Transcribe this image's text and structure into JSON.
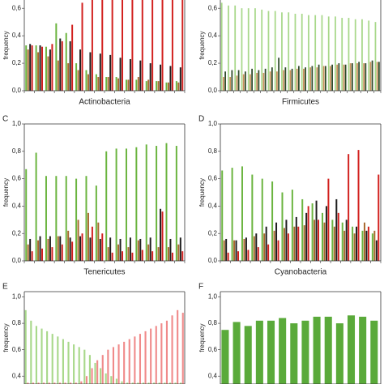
{
  "chart_data": [
    {
      "type": "bar",
      "x_label": "Actinobacteria",
      "y_label": "frequency",
      "ylim": [
        0,
        0.66
      ],
      "yticks": [
        {
          "value": 0,
          "label": "0,0"
        },
        {
          "value": 0.2,
          "label": "0,2"
        },
        {
          "value": 0.4,
          "label": "0,4"
        },
        {
          "value": 0.6,
          "label": "0,6"
        }
      ],
      "categories": [
        null,
        null,
        null,
        null,
        null,
        null,
        null,
        null,
        null,
        null,
        null,
        null,
        null,
        null,
        null,
        null
      ],
      "series": [
        {
          "color": "#6ab43e",
          "values": [
            0.33,
            0.33,
            0.32,
            0.49,
            0.42,
            0.2,
            0.15,
            0.12,
            0.1,
            0.1,
            0.08,
            0.08,
            0.07,
            0.07,
            0.06,
            0.07
          ]
        },
        {
          "color": "#a8692f",
          "values": [
            0.3,
            0.28,
            0.25,
            0.22,
            0.2,
            0.15,
            0.12,
            0.1,
            0.1,
            0.09,
            0.08,
            0.1,
            0.08,
            0.07,
            0.06,
            0.06
          ]
        },
        {
          "color": "#1e1e1e",
          "values": [
            0.34,
            0.33,
            0.3,
            0.38,
            0.36,
            0.3,
            0.28,
            0.27,
            0.26,
            0.24,
            0.23,
            0.22,
            0.2,
            0.19,
            0.18,
            0.17
          ]
        },
        {
          "color": "#d2201e",
          "values": [
            0.33,
            0.32,
            0.34,
            0.36,
            0.48,
            0.64,
            0.7,
            0.7,
            0.7,
            0.7,
            0.7,
            0.7,
            0.7,
            0.7,
            0.7,
            0.7
          ]
        }
      ]
    },
    {
      "type": "bar",
      "x_label": "Firmicutes",
      "y_label": "frequency",
      "ylim": [
        0,
        0.66
      ],
      "yticks": [
        {
          "value": 0,
          "label": "0,0"
        },
        {
          "value": 0.2,
          "label": "0,2"
        },
        {
          "value": 0.4,
          "label": "0,4"
        },
        {
          "value": 0.6,
          "label": "0,6"
        }
      ],
      "categories": [
        null,
        null,
        null,
        null,
        null,
        null,
        null,
        null,
        null,
        null,
        null,
        null,
        null,
        null,
        null,
        null,
        null,
        null,
        null,
        null,
        null,
        null,
        null,
        null
      ],
      "series": [
        {
          "color": "#a8d88a",
          "values": [
            0.64,
            0.62,
            0.62,
            0.6,
            0.6,
            0.6,
            0.59,
            0.58,
            0.58,
            0.57,
            0.57,
            0.56,
            0.56,
            0.55,
            0.55,
            0.55,
            0.54,
            0.54,
            0.53,
            0.53,
            0.52,
            0.52,
            0.51,
            0.5
          ]
        },
        {
          "color": "#c8905a",
          "values": [
            0.1,
            0.1,
            0.11,
            0.12,
            0.12,
            0.13,
            0.13,
            0.14,
            0.14,
            0.15,
            0.15,
            0.16,
            0.16,
            0.17,
            0.17,
            0.18,
            0.18,
            0.19,
            0.19,
            0.2,
            0.2,
            0.2,
            0.21,
            0.21
          ]
        },
        {
          "color": "#2e4a2a",
          "values": [
            0.14,
            0.15,
            0.15,
            0.14,
            0.16,
            0.15,
            0.16,
            0.17,
            0.24,
            0.17,
            0.16,
            0.18,
            0.17,
            0.18,
            0.19,
            0.18,
            0.19,
            0.2,
            0.19,
            0.2,
            0.21,
            0.2,
            0.22,
            0.21
          ]
        }
      ]
    },
    {
      "type": "bar",
      "panel": "C",
      "x_label": "Tenericutes",
      "y_label": "frequency",
      "ylim": [
        0,
        1
      ],
      "yticks": [
        {
          "value": 0,
          "label": "0,0"
        },
        {
          "value": 0.2,
          "label": "0,2"
        },
        {
          "value": 0.4,
          "label": "0,4"
        },
        {
          "value": 0.6,
          "label": "0,6"
        },
        {
          "value": 0.8,
          "label": "0,8"
        },
        {
          "value": 1,
          "label": "1,0"
        }
      ],
      "categories": [
        null,
        null,
        null,
        null,
        null,
        null,
        null,
        null,
        null,
        null,
        null,
        null,
        null,
        null,
        null,
        null
      ],
      "series": [
        {
          "color": "#6ab43e",
          "values": [
            0.67,
            0.79,
            0.62,
            0.62,
            0.62,
            0.6,
            0.62,
            0.55,
            0.8,
            0.82,
            0.82,
            0.83,
            0.85,
            0.84,
            0.86,
            0.84
          ]
        },
        {
          "color": "#a8692f",
          "values": [
            0.12,
            0.15,
            0.16,
            0.18,
            0.22,
            0.3,
            0.35,
            0.28,
            0.1,
            0.12,
            0.1,
            0.15,
            0.12,
            0.1,
            0.1,
            0.12
          ]
        },
        {
          "color": "#1e1e1e",
          "values": [
            0.16,
            0.18,
            0.18,
            0.18,
            0.17,
            0.18,
            0.17,
            0.16,
            0.17,
            0.16,
            0.17,
            0.16,
            0.17,
            0.38,
            0.16,
            0.17
          ]
        },
        {
          "color": "#d2201e",
          "values": [
            0.07,
            0.09,
            0.1,
            0.12,
            0.14,
            0.2,
            0.25,
            0.2,
            0.06,
            0.07,
            0.06,
            0.08,
            0.07,
            0.36,
            0.06,
            0.07
          ]
        }
      ]
    },
    {
      "type": "bar",
      "panel": "D",
      "x_label": "Cyanobacteria",
      "y_label": "frequency",
      "ylim": [
        0,
        1
      ],
      "yticks": [
        {
          "value": 0,
          "label": "0,0"
        },
        {
          "value": 0.2,
          "label": "0,2"
        },
        {
          "value": 0.4,
          "label": "0,4"
        },
        {
          "value": 0.6,
          "label": "0,6"
        },
        {
          "value": 0.8,
          "label": "0,8"
        },
        {
          "value": 1,
          "label": "1,0"
        }
      ],
      "categories": [
        null,
        null,
        null,
        null,
        null,
        null,
        null,
        null,
        null,
        null,
        null,
        null,
        null,
        null,
        null,
        null
      ],
      "series": [
        {
          "color": "#6ab43e",
          "values": [
            0.66,
            0.68,
            0.69,
            0.63,
            0.6,
            0.58,
            0.5,
            0.52,
            0.45,
            0.42,
            0.35,
            0.3,
            0.28,
            0.25,
            0.22,
            0.2
          ]
        },
        {
          "color": "#a8692f",
          "values": [
            0.15,
            0.15,
            0.16,
            0.18,
            0.2,
            0.22,
            0.24,
            0.25,
            0.26,
            0.3,
            0.28,
            0.25,
            0.22,
            0.2,
            0.28,
            0.22
          ]
        },
        {
          "color": "#1e1e1e",
          "values": [
            0.16,
            0.15,
            0.17,
            0.2,
            0.25,
            0.28,
            0.3,
            0.32,
            0.35,
            0.44,
            0.4,
            0.45,
            0.3,
            0.25,
            0.22,
            0.15
          ]
        },
        {
          "color": "#d2201e",
          "values": [
            0.06,
            0.07,
            0.08,
            0.1,
            0.12,
            0.15,
            0.2,
            0.25,
            0.4,
            0.3,
            0.6,
            0.35,
            0.78,
            0.81,
            0.25,
            0.63
          ]
        }
      ]
    },
    {
      "type": "bar",
      "panel": "E",
      "y_label": "frequency",
      "ylim": [
        0.34,
        1.04
      ],
      "yticks": [
        {
          "value": 0.4,
          "label": "0,4"
        },
        {
          "value": 0.6,
          "label": "0,6"
        },
        {
          "value": 0.8,
          "label": "0,8"
        },
        {
          "value": 1,
          "label": "1,0"
        }
      ],
      "categories": [
        null,
        null,
        null,
        null,
        null,
        null,
        null,
        null,
        null,
        null,
        null,
        null,
        null,
        null,
        null,
        null,
        null,
        null,
        null,
        null,
        null,
        null,
        null,
        null,
        null,
        null,
        null,
        null,
        null,
        null
      ],
      "series": [
        {
          "color": "#a8d88a",
          "values": [
            0.9,
            0.82,
            0.78,
            0.76,
            0.74,
            0.72,
            0.7,
            0.68,
            0.66,
            0.64,
            0.62,
            0.6,
            0.56,
            0.5,
            0.46,
            0.42,
            0.4,
            0.38,
            0.36,
            0.35,
            0.35,
            0.35,
            0.35,
            0.35,
            0.35,
            0.35,
            0.35,
            0.35,
            0.35,
            0.35
          ]
        },
        {
          "color": "#f08a8a",
          "values": [
            0.35,
            0.35,
            0.35,
            0.35,
            0.35,
            0.35,
            0.35,
            0.35,
            0.35,
            0.35,
            0.36,
            0.4,
            0.46,
            0.52,
            0.56,
            0.6,
            0.62,
            0.64,
            0.66,
            0.68,
            0.7,
            0.72,
            0.74,
            0.76,
            0.78,
            0.8,
            0.82,
            0.86,
            0.9,
            0.88
          ]
        }
      ]
    },
    {
      "type": "bar",
      "panel": "F",
      "y_label": "frequency",
      "ylim": [
        0.34,
        1.04
      ],
      "yticks": [
        {
          "value": 0.4,
          "label": "0,4"
        },
        {
          "value": 0.6,
          "label": "0,6"
        },
        {
          "value": 0.8,
          "label": "0,8"
        },
        {
          "value": 1,
          "label": "1,0"
        }
      ],
      "categories": [
        null,
        null,
        null,
        null,
        null,
        null,
        null,
        null,
        null,
        null,
        null,
        null,
        null,
        null
      ],
      "series": [
        {
          "color": "#5aaa3a",
          "values": [
            0.75,
            0.81,
            0.78,
            0.82,
            0.82,
            0.84,
            0.8,
            0.82,
            0.85,
            0.85,
            0.8,
            0.86,
            0.85,
            0.82
          ]
        }
      ]
    }
  ]
}
